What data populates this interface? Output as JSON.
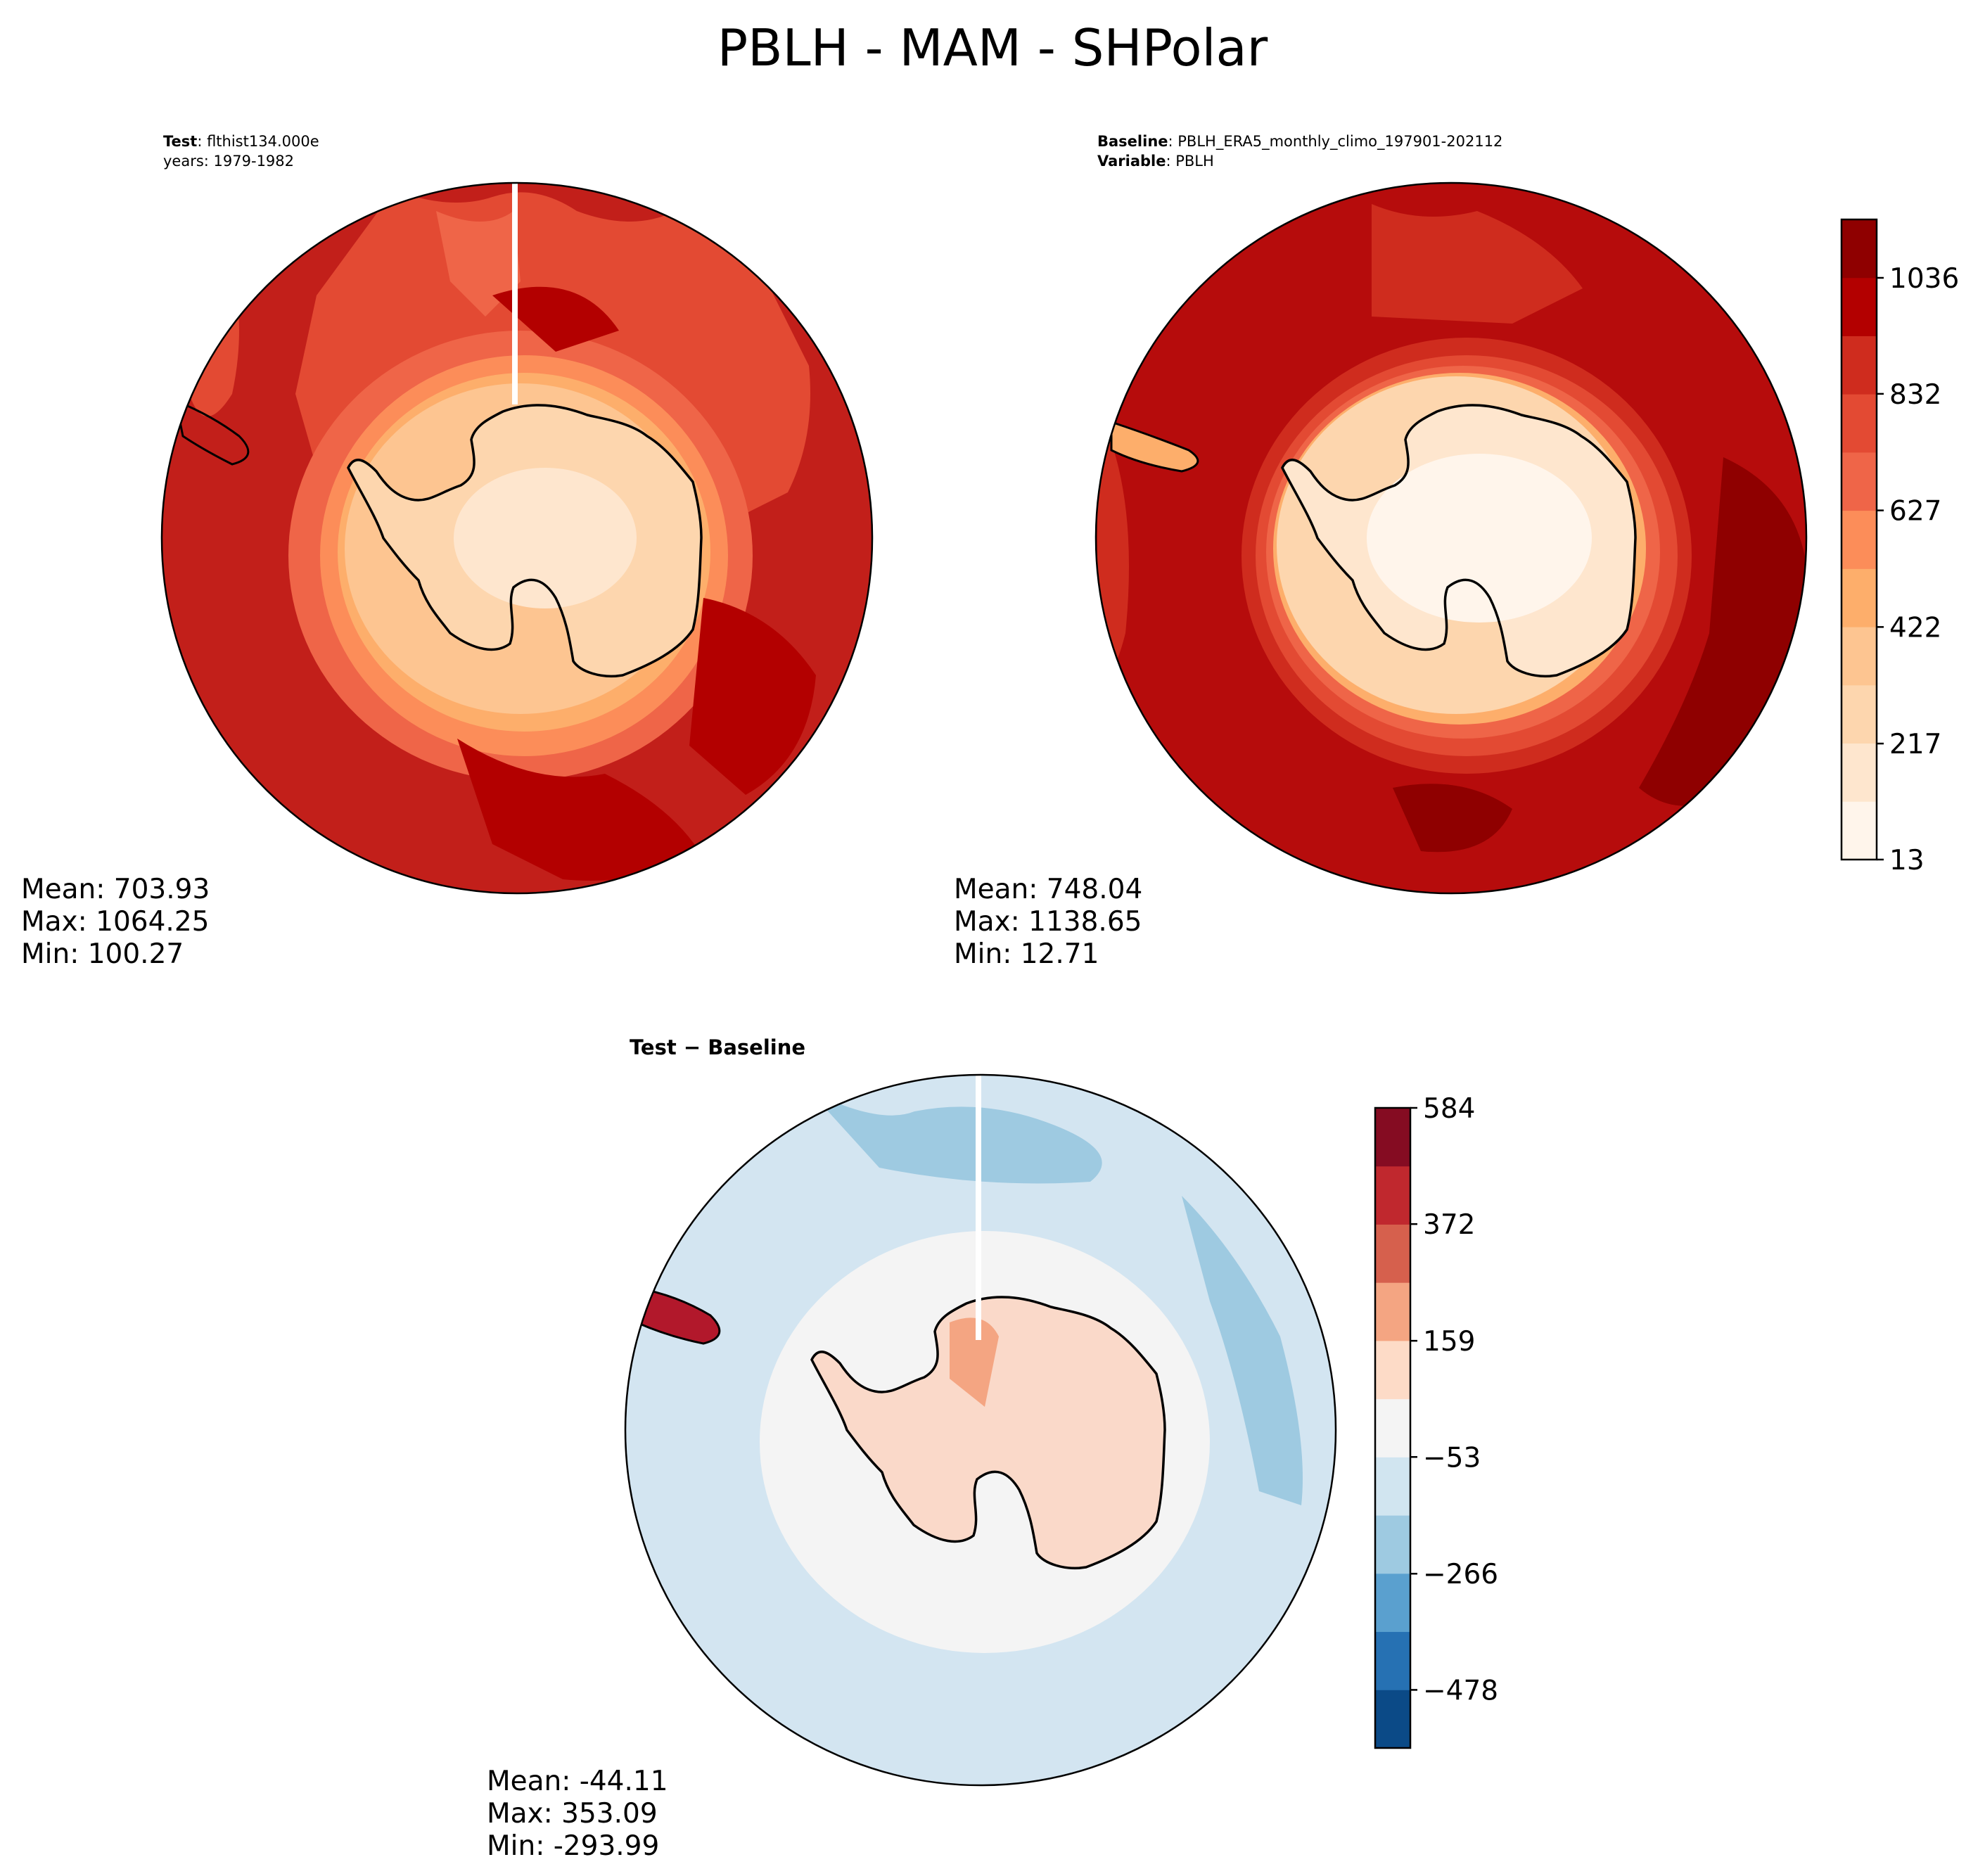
{
  "figure": {
    "title": "PBLH - MAM - SHPolar"
  },
  "panels": {
    "test": {
      "label_key": "Test",
      "label_value": ": flthist134.000e",
      "years": "years: 1979-1982",
      "mean": "Mean: 703.93",
      "max": "Max: 1064.25",
      "min": "Min: 100.27"
    },
    "baseline": {
      "label_key": "Baseline",
      "label_value": ": PBLH_ERA5_monthly_climo_197901-202112",
      "variable_key": "Variable",
      "variable_value": ": PBLH",
      "mean": "Mean: 748.04",
      "max": "Max: 1138.65",
      "min": "Min: 12.71"
    },
    "difference": {
      "title_a": "Test",
      "title_op": " − ",
      "title_b": "Baseline",
      "mean": "Mean: -44.11",
      "max": "Max: 353.09",
      "min": "Min: -293.99"
    }
  },
  "colors": {
    "land_outline": "#000000",
    "ocean_test": "#c21f1a",
    "ocean_baseline": "#b60c0c",
    "antarctica_fill": "#fee0ba",
    "diff_ocean": "#d3e5f1",
    "diff_land": "#fad9c9",
    "diff_ring": "#f4f4f4"
  },
  "chart_data": [
    {
      "type": "heatmap",
      "panel": "test",
      "projection": "south polar stereographic",
      "colormap": "OrRd-like",
      "stats": {
        "mean": 703.93,
        "max": 1064.25,
        "min": 100.27
      }
    },
    {
      "type": "heatmap",
      "panel": "baseline",
      "projection": "south polar stereographic",
      "colormap": "OrRd-like",
      "stats": {
        "mean": 748.04,
        "max": 1138.65,
        "min": 12.71
      },
      "colorbar": {
        "range": [
          13,
          1138.65
        ],
        "tick_values": [
          13,
          217,
          422,
          627,
          832,
          1036
        ],
        "tick_labels": [
          "13",
          "217",
          "422",
          "627",
          "832",
          "1036"
        ],
        "levels": [
          "#fff5eb",
          "#fee6ce",
          "#fdd6ae",
          "#fdc591",
          "#fdae6b",
          "#fc8d59",
          "#ef6548",
          "#e34a33",
          "#cf2c1e",
          "#b30000",
          "#8f0000"
        ]
      }
    },
    {
      "type": "heatmap",
      "panel": "difference",
      "projection": "south polar stereographic",
      "colormap": "RdBu_r",
      "stats": {
        "mean": -44.11,
        "max": 353.09,
        "min": -293.99
      },
      "colorbar": {
        "range": [
          -584,
          584
        ],
        "tick_values": [
          -478,
          -266,
          -53,
          159,
          372,
          584
        ],
        "tick_labels": [
          "−478",
          "−266",
          "−53",
          "159",
          "372",
          "584"
        ],
        "levels": [
          "#0b4a87",
          "#2671b3",
          "#5aa0cf",
          "#9ecae1",
          "#d1e5f0",
          "#f4f4f4",
          "#fddbc7",
          "#f4a582",
          "#d6604d",
          "#c0282e",
          "#850c22"
        ]
      }
    }
  ]
}
